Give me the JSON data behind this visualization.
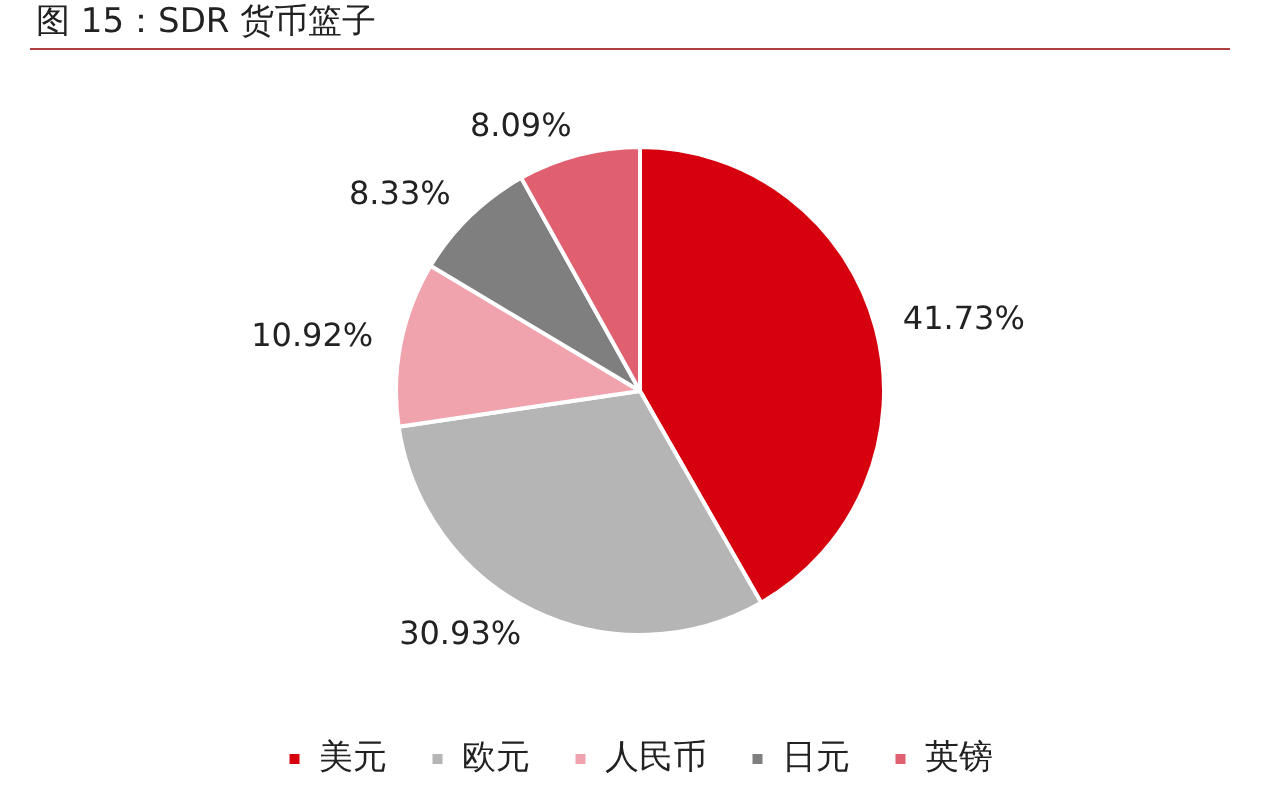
{
  "chart_data": {
    "type": "pie",
    "title": "图 15：SDR 货币篮子",
    "categories": [
      "美元",
      "欧元",
      "人民币",
      "日元",
      "英镑"
    ],
    "values": [
      41.73,
      30.93,
      10.92,
      8.33,
      8.09
    ],
    "colors": [
      "#d7000f",
      "#b5b5b5",
      "#f0a3ad",
      "#7f7f7f",
      "#e0606f"
    ],
    "value_labels": [
      "41.73%",
      "30.93%",
      "10.92%",
      "8.33%",
      "8.09%"
    ],
    "legend": "bottom"
  }
}
